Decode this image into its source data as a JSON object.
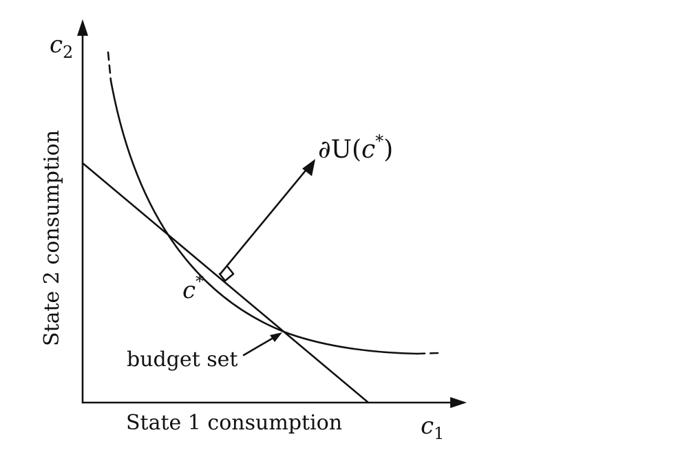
{
  "diagram": {
    "axes": {
      "y_symbol_base": "c",
      "y_symbol_sub": "2",
      "x_symbol_base": "c",
      "x_symbol_sub": "1",
      "y_label": "State 2 consumption",
      "x_label": "State 1 consumption"
    },
    "point": {
      "base": "c",
      "sup": "*"
    },
    "gradient": {
      "prefix": "∂U(",
      "base": "c",
      "sup": "*",
      "suffix": ")"
    },
    "budget": {
      "label": "budget set"
    },
    "colors": {
      "ink": "#111111",
      "background": "#ffffff"
    }
  }
}
